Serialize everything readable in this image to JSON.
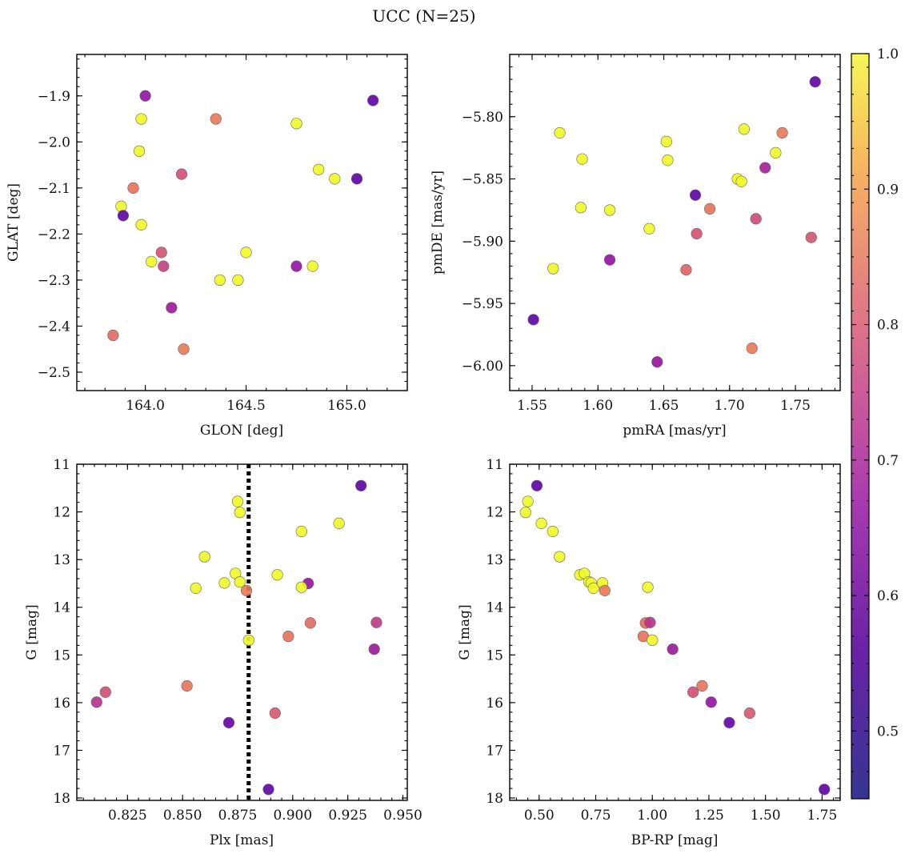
{
  "figure_title": "UCC (N=25)",
  "colorbar": {
    "vmin": 0.45,
    "vmax": 1.0,
    "ticks": [
      0.5,
      0.6,
      0.7,
      0.8,
      0.9,
      1.0
    ],
    "tick_labels": [
      "0.5",
      "0.6",
      "0.7",
      "0.8",
      "0.9",
      "1.0"
    ],
    "colormap": "plasma"
  },
  "chart_data": [
    {
      "type": "scatter",
      "id": "glon-glat",
      "xlabel": "GLON [deg]",
      "ylabel": "GLAT [deg]",
      "xlim": [
        163.66,
        165.3
      ],
      "ylim": [
        -2.54,
        -1.81
      ],
      "y_inverted": false,
      "xticks": [
        164.0,
        164.5,
        165.0
      ],
      "xtick_labels": [
        "164.0",
        "164.5",
        "165.0"
      ],
      "yticks": [
        -1.9,
        -2.0,
        -2.1,
        -2.2,
        -2.3,
        -2.4,
        -2.5
      ],
      "ytick_labels": [
        "−1.9",
        "−2.0",
        "−2.1",
        "−2.2",
        "−2.3",
        "−2.4",
        "−2.5"
      ],
      "points": [
        {
          "x": 164.0,
          "y": -1.9,
          "c": 0.58
        },
        {
          "x": 165.13,
          "y": -1.91,
          "c": 0.46
        },
        {
          "x": 163.98,
          "y": -1.95,
          "c": 1.0
        },
        {
          "x": 164.35,
          "y": -1.95,
          "c": 0.88
        },
        {
          "x": 164.75,
          "y": -1.96,
          "c": 1.0
        },
        {
          "x": 163.97,
          "y": -2.02,
          "c": 1.0
        },
        {
          "x": 164.18,
          "y": -2.07,
          "c": 0.76
        },
        {
          "x": 164.86,
          "y": -2.06,
          "c": 1.0
        },
        {
          "x": 164.94,
          "y": -2.08,
          "c": 1.0
        },
        {
          "x": 165.05,
          "y": -2.08,
          "c": 0.46
        },
        {
          "x": 163.94,
          "y": -2.1,
          "c": 0.86
        },
        {
          "x": 163.88,
          "y": -2.14,
          "c": 1.0
        },
        {
          "x": 163.89,
          "y": -2.16,
          "c": 0.46
        },
        {
          "x": 163.98,
          "y": -2.18,
          "c": 1.0
        },
        {
          "x": 164.08,
          "y": -2.24,
          "c": 0.77
        },
        {
          "x": 164.5,
          "y": -2.24,
          "c": 1.0
        },
        {
          "x": 164.03,
          "y": -2.26,
          "c": 1.0
        },
        {
          "x": 164.09,
          "y": -2.27,
          "c": 0.72
        },
        {
          "x": 164.75,
          "y": -2.27,
          "c": 0.58
        },
        {
          "x": 164.83,
          "y": -2.27,
          "c": 1.0
        },
        {
          "x": 164.37,
          "y": -2.3,
          "c": 1.0
        },
        {
          "x": 164.46,
          "y": -2.3,
          "c": 1.0
        },
        {
          "x": 164.13,
          "y": -2.36,
          "c": 0.6
        },
        {
          "x": 163.84,
          "y": -2.42,
          "c": 0.84
        },
        {
          "x": 164.19,
          "y": -2.45,
          "c": 0.88
        }
      ]
    },
    {
      "type": "scatter",
      "id": "pmra-pmde",
      "xlabel": "pmRA [mas/yr]",
      "ylabel": "pmDE [mas/yr]",
      "xlim": [
        1.533,
        1.784
      ],
      "ylim": [
        -6.02,
        -5.75
      ],
      "y_inverted": false,
      "xticks": [
        1.55,
        1.6,
        1.65,
        1.7,
        1.75
      ],
      "xtick_labels": [
        "1.55",
        "1.60",
        "1.65",
        "1.70",
        "1.75"
      ],
      "yticks": [
        -5.8,
        -5.85,
        -5.9,
        -5.95,
        -6.0
      ],
      "ytick_labels": [
        "−5.80",
        "−5.85",
        "−5.90",
        "−5.95",
        "−6.00"
      ],
      "points": [
        {
          "x": 1.765,
          "y": -5.772,
          "c": 0.46
        },
        {
          "x": 1.571,
          "y": -5.813,
          "c": 1.0
        },
        {
          "x": 1.652,
          "y": -5.82,
          "c": 1.0
        },
        {
          "x": 1.711,
          "y": -5.81,
          "c": 1.0
        },
        {
          "x": 1.74,
          "y": -5.813,
          "c": 0.88
        },
        {
          "x": 1.588,
          "y": -5.834,
          "c": 1.0
        },
        {
          "x": 1.653,
          "y": -5.835,
          "c": 1.0
        },
        {
          "x": 1.735,
          "y": -5.829,
          "c": 1.0
        },
        {
          "x": 1.727,
          "y": -5.841,
          "c": 0.62
        },
        {
          "x": 1.706,
          "y": -5.85,
          "c": 1.0
        },
        {
          "x": 1.709,
          "y": -5.852,
          "c": 1.0
        },
        {
          "x": 1.674,
          "y": -5.863,
          "c": 0.46
        },
        {
          "x": 1.587,
          "y": -5.873,
          "c": 1.0
        },
        {
          "x": 1.609,
          "y": -5.875,
          "c": 1.0
        },
        {
          "x": 1.685,
          "y": -5.874,
          "c": 0.86
        },
        {
          "x": 1.72,
          "y": -5.882,
          "c": 0.75
        },
        {
          "x": 1.639,
          "y": -5.89,
          "c": 1.0
        },
        {
          "x": 1.675,
          "y": -5.894,
          "c": 0.77
        },
        {
          "x": 1.762,
          "y": -5.897,
          "c": 0.78
        },
        {
          "x": 1.609,
          "y": -5.915,
          "c": 0.58
        },
        {
          "x": 1.566,
          "y": -5.922,
          "c": 1.0
        },
        {
          "x": 1.667,
          "y": -5.923,
          "c": 0.82
        },
        {
          "x": 1.551,
          "y": -5.963,
          "c": 0.46
        },
        {
          "x": 1.717,
          "y": -5.986,
          "c": 0.88
        },
        {
          "x": 1.645,
          "y": -5.997,
          "c": 0.58
        }
      ]
    },
    {
      "type": "scatter",
      "id": "plx-g",
      "xlabel": "Plx [mas]",
      "ylabel": "G [mag]",
      "xlim": [
        0.802,
        0.952
      ],
      "ylim": [
        11.0,
        18.05
      ],
      "y_inverted": true,
      "vline": 0.88,
      "xticks": [
        0.825,
        0.85,
        0.875,
        0.9,
        0.925,
        0.95
      ],
      "xtick_labels": [
        "0.825",
        "0.850",
        "0.875",
        "0.900",
        "0.925",
        "0.950"
      ],
      "yticks": [
        11,
        12,
        13,
        14,
        15,
        16,
        17,
        18
      ],
      "ytick_labels": [
        "11",
        "12",
        "13",
        "14",
        "15",
        "16",
        "17",
        "18"
      ],
      "points": [
        {
          "x": 0.931,
          "y": 11.45,
          "c": 0.46
        },
        {
          "x": 0.875,
          "y": 11.78,
          "c": 1.0
        },
        {
          "x": 0.876,
          "y": 12.01,
          "c": 1.0
        },
        {
          "x": 0.921,
          "y": 12.24,
          "c": 1.0
        },
        {
          "x": 0.904,
          "y": 12.41,
          "c": 1.0
        },
        {
          "x": 0.86,
          "y": 12.94,
          "c": 1.0
        },
        {
          "x": 0.874,
          "y": 13.29,
          "c": 1.0
        },
        {
          "x": 0.893,
          "y": 13.32,
          "c": 1.0
        },
        {
          "x": 0.869,
          "y": 13.49,
          "c": 1.0
        },
        {
          "x": 0.876,
          "y": 13.47,
          "c": 1.0
        },
        {
          "x": 0.907,
          "y": 13.5,
          "c": 0.58
        },
        {
          "x": 0.856,
          "y": 13.6,
          "c": 1.0
        },
        {
          "x": 0.879,
          "y": 13.65,
          "c": 0.88
        },
        {
          "x": 0.904,
          "y": 13.58,
          "c": 1.0
        },
        {
          "x": 0.938,
          "y": 14.32,
          "c": 0.7
        },
        {
          "x": 0.908,
          "y": 14.33,
          "c": 0.84
        },
        {
          "x": 0.898,
          "y": 14.61,
          "c": 0.86
        },
        {
          "x": 0.88,
          "y": 14.69,
          "c": 1.0
        },
        {
          "x": 0.937,
          "y": 14.88,
          "c": 0.6
        },
        {
          "x": 0.852,
          "y": 15.65,
          "c": 0.87
        },
        {
          "x": 0.815,
          "y": 15.78,
          "c": 0.76
        },
        {
          "x": 0.811,
          "y": 15.99,
          "c": 0.67
        },
        {
          "x": 0.892,
          "y": 16.22,
          "c": 0.79
        },
        {
          "x": 0.871,
          "y": 16.42,
          "c": 0.48
        },
        {
          "x": 0.889,
          "y": 17.82,
          "c": 0.46
        }
      ]
    },
    {
      "type": "scatter",
      "id": "bprp-g",
      "xlabel": "BP-RP [mag]",
      "ylabel": "G [mag]",
      "xlim": [
        0.37,
        1.83
      ],
      "ylim": [
        11.0,
        18.05
      ],
      "y_inverted": true,
      "xticks": [
        0.5,
        0.75,
        1.0,
        1.25,
        1.5,
        1.75
      ],
      "xtick_labels": [
        "0.50",
        "0.75",
        "1.00",
        "1.25",
        "1.50",
        "1.75"
      ],
      "yticks": [
        11,
        12,
        13,
        14,
        15,
        16,
        17,
        18
      ],
      "ytick_labels": [
        "11",
        "12",
        "13",
        "14",
        "15",
        "16",
        "17",
        "18"
      ],
      "points": [
        {
          "x": 0.49,
          "y": 11.45,
          "c": 0.46
        },
        {
          "x": 0.45,
          "y": 11.78,
          "c": 1.0
        },
        {
          "x": 0.44,
          "y": 12.01,
          "c": 1.0
        },
        {
          "x": 0.51,
          "y": 12.24,
          "c": 1.0
        },
        {
          "x": 0.56,
          "y": 12.41,
          "c": 1.0
        },
        {
          "x": 0.59,
          "y": 12.94,
          "c": 1.0
        },
        {
          "x": 0.68,
          "y": 13.32,
          "c": 1.0
        },
        {
          "x": 0.7,
          "y": 13.29,
          "c": 1.0
        },
        {
          "x": 0.72,
          "y": 13.47,
          "c": 1.0
        },
        {
          "x": 0.73,
          "y": 13.49,
          "c": 1.0
        },
        {
          "x": 0.74,
          "y": 13.6,
          "c": 1.0
        },
        {
          "x": 0.78,
          "y": 13.49,
          "c": 1.0
        },
        {
          "x": 0.79,
          "y": 13.65,
          "c": 0.88
        },
        {
          "x": 0.98,
          "y": 13.58,
          "c": 1.0
        },
        {
          "x": 0.97,
          "y": 14.33,
          "c": 0.84
        },
        {
          "x": 0.99,
          "y": 14.32,
          "c": 0.68
        },
        {
          "x": 0.96,
          "y": 14.61,
          "c": 0.86
        },
        {
          "x": 1.0,
          "y": 14.69,
          "c": 1.0
        },
        {
          "x": 1.09,
          "y": 14.88,
          "c": 0.6
        },
        {
          "x": 1.22,
          "y": 15.65,
          "c": 0.87
        },
        {
          "x": 1.18,
          "y": 15.78,
          "c": 0.76
        },
        {
          "x": 1.26,
          "y": 15.99,
          "c": 0.58
        },
        {
          "x": 1.43,
          "y": 16.22,
          "c": 0.79
        },
        {
          "x": 1.34,
          "y": 16.42,
          "c": 0.48
        },
        {
          "x": 1.76,
          "y": 17.82,
          "c": 0.46
        }
      ]
    }
  ]
}
